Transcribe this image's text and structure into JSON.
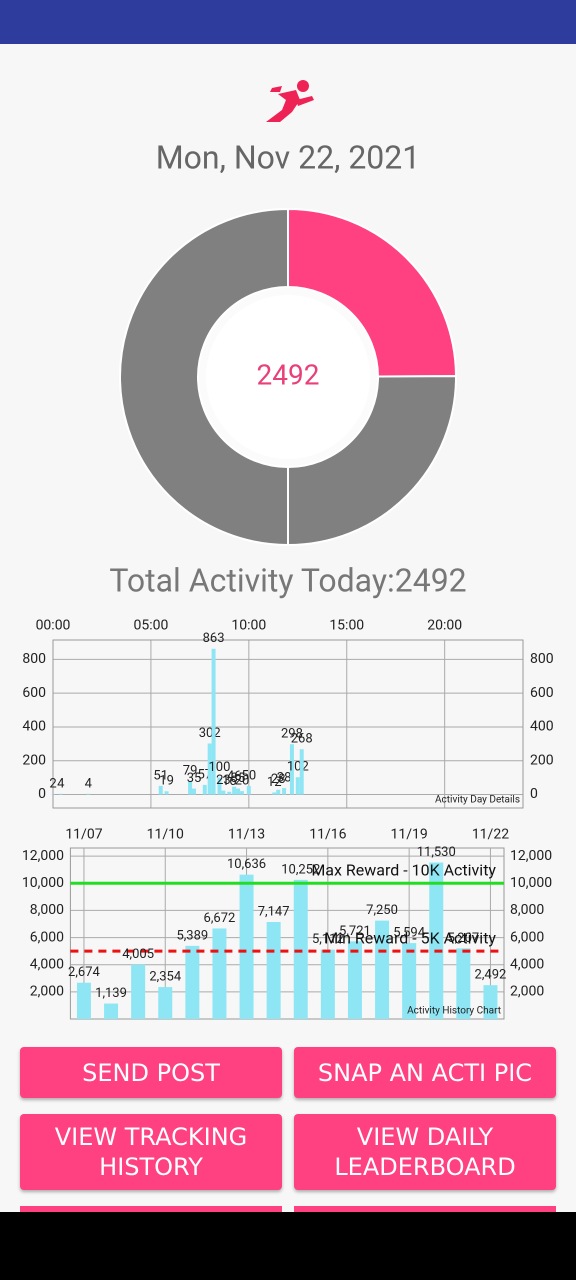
{
  "date": "Mon, Nov 22, 2021",
  "total_label": "Total Activity Today:2492",
  "buttons": [
    "SEND POST",
    "SNAP AN ACTI PIC",
    "VIEW TRACKING HISTORY",
    "VIEW DAILY LEADERBOARD"
  ],
  "chart_data": [
    {
      "type": "donut",
      "center_label": "2492",
      "values": [
        2492,
        2508,
        5000
      ],
      "colors": [
        "#ff4081",
        "#808080",
        "#808080"
      ]
    },
    {
      "type": "bar",
      "description": "Activity Day Details",
      "color": "#8ee6f5",
      "grid": true,
      "x": [
        0,
        0.4,
        1.8,
        5.5,
        5.8,
        7.0,
        7.2,
        7.75,
        8.0,
        8.2,
        8.5,
        8.7,
        9.0,
        9.25,
        9.45,
        9.65,
        10.0,
        11.3,
        11.5,
        11.8,
        12.2,
        12.5,
        12.7
      ],
      "values": [
        2,
        4,
        4,
        51,
        19,
        79,
        35,
        57,
        302,
        863,
        100,
        23,
        16,
        46,
        35,
        20,
        50,
        12,
        28,
        38,
        298,
        102,
        268
      ],
      "xlim": [
        0,
        24
      ],
      "xticks": [
        {
          "value": 0,
          "label": "00:00"
        },
        {
          "value": 5,
          "label": "05:00"
        },
        {
          "value": 10,
          "label": "10:00"
        },
        {
          "value": 15,
          "label": "15:00"
        },
        {
          "value": 20,
          "label": "20:00"
        }
      ],
      "ylim": [
        -80,
        915
      ],
      "yticks": [
        0,
        200,
        400,
        600,
        800
      ]
    },
    {
      "type": "bar",
      "description": "Activity History Chart",
      "color": "#8ee6f5",
      "grid": true,
      "categories": [
        "11/07",
        null,
        null,
        "11/10",
        null,
        null,
        "11/13",
        null,
        null,
        "11/16",
        null,
        null,
        "11/19",
        null,
        null,
        "11/22"
      ],
      "values": [
        2674,
        1139,
        4005,
        2354,
        5389,
        6672,
        10636,
        7147,
        10252,
        5112,
        5721,
        7250,
        5594,
        11530,
        5207,
        2492
      ],
      "value_labels": [
        "2,674",
        "1,139",
        "4,005",
        "2,354",
        "5,389",
        "6,672",
        "10,636",
        "7,147",
        "10,252",
        "5,112",
        "5,721",
        "7,250",
        "5,594",
        "11,530",
        "5,207",
        "2,492"
      ],
      "ylim": [
        0,
        12600
      ],
      "yticks": [
        {
          "value": 2000,
          "label": "2,000"
        },
        {
          "value": 4000,
          "label": "4,000"
        },
        {
          "value": 6000,
          "label": "6,000"
        },
        {
          "value": 8000,
          "label": "8,000"
        },
        {
          "value": 10000,
          "label": "10,000"
        },
        {
          "value": 12000,
          "label": "12,000"
        }
      ],
      "lines": [
        {
          "name": "Max Reward - 10K Activity",
          "value": 10000,
          "color": "#22dd22",
          "dashed": false
        },
        {
          "name": "Min Reward - 5K Activity",
          "value": 5000,
          "color": "#ee1111",
          "dashed": true
        }
      ]
    }
  ]
}
